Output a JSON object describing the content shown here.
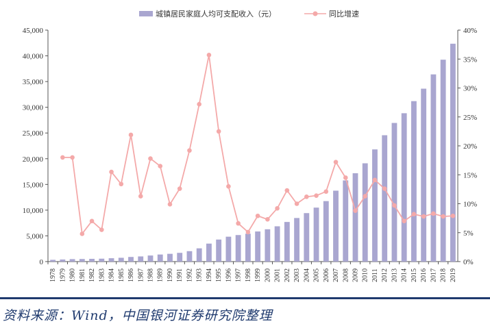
{
  "chart_data": {
    "type": "bar+line",
    "title": "",
    "categories": [
      "1978",
      "1979",
      "1980",
      "1981",
      "1982",
      "1983",
      "1984",
      "1985",
      "1986",
      "1987",
      "1988",
      "1989",
      "1990",
      "1991",
      "1992",
      "1993",
      "1994",
      "1995",
      "1996",
      "1997",
      "1998",
      "1999",
      "2000",
      "2001",
      "2002",
      "2003",
      "2004",
      "2005",
      "2006",
      "2007",
      "2008",
      "2009",
      "2010",
      "2011",
      "2012",
      "2013",
      "2014",
      "2015",
      "2016",
      "2017",
      "2018",
      "2019"
    ],
    "series": [
      {
        "name": "城镇居民家庭人均可支配收入（元）",
        "type": "bar",
        "axis": "left",
        "color": "#a9a6d0",
        "values": [
          343,
          405,
          478,
          500,
          535,
          565,
          652,
          739,
          900,
          1002,
          1180,
          1374,
          1510,
          1701,
          2027,
          2577,
          3496,
          4283,
          4839,
          5160,
          5425,
          5854,
          6280,
          6860,
          7703,
          8472,
          9422,
          10493,
          11759,
          13786,
          15781,
          17175,
          19109,
          21810,
          24565,
          26955,
          28844,
          31195,
          33616,
          36396,
          39251,
          42359
        ]
      },
      {
        "name": "同比增速",
        "type": "line",
        "axis": "right",
        "color": "#f4a9a9",
        "values": [
          null,
          18.0,
          18.0,
          4.8,
          7.0,
          5.5,
          15.5,
          13.4,
          21.9,
          11.3,
          17.8,
          16.5,
          9.9,
          12.6,
          19.2,
          27.2,
          35.7,
          22.5,
          13.0,
          6.6,
          5.1,
          7.9,
          7.3,
          9.2,
          12.3,
          10.0,
          11.2,
          11.4,
          12.1,
          17.2,
          14.5,
          8.8,
          11.3,
          14.1,
          12.6,
          9.7,
          7.0,
          8.2,
          7.8,
          8.3,
          7.8,
          7.9
        ]
      }
    ],
    "y_left": {
      "min": 0,
      "max": 45000,
      "step": 5000,
      "tick_labels": [
        "0",
        "5,000",
        "10,000",
        "15,000",
        "20,000",
        "25,000",
        "30,000",
        "35,000",
        "40,000",
        "45,000"
      ]
    },
    "y_right": {
      "min": 0,
      "max": 40,
      "step": 5,
      "tick_labels": [
        "0%",
        "5%",
        "10%",
        "15%",
        "20%",
        "25%",
        "30%",
        "35%",
        "40%"
      ]
    },
    "legend_position": "top-center",
    "grid": false
  },
  "footer": {
    "source": "资料来源：Wind，中国银河证券研究院整理"
  }
}
